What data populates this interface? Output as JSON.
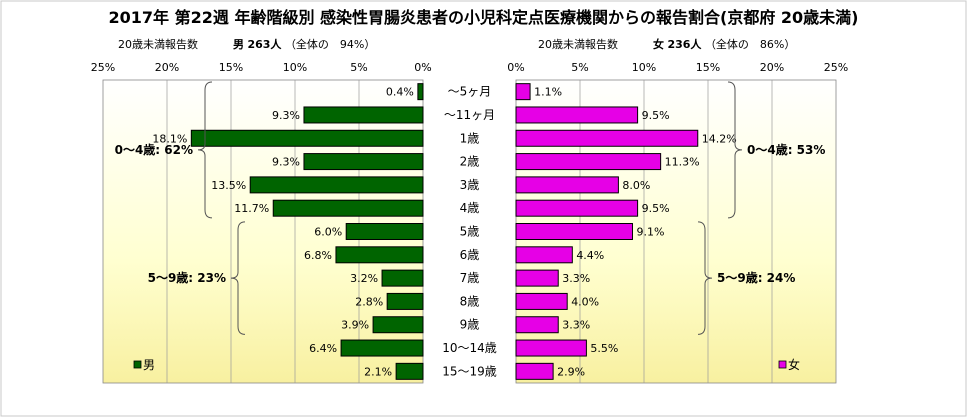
{
  "chart_data": {
    "type": "bar",
    "title": "2017年 第22週 年齢階級別 感染性胃腸炎患者の小児科定点医療機関からの報告割合(京都府 20歳未満)",
    "categories": [
      "～5ヶ月",
      "～11ヶ月",
      "1歳",
      "2歳",
      "3歳",
      "4歳",
      "5歳",
      "6歳",
      "7歳",
      "8歳",
      "9歳",
      "10～14歳",
      "15～19歳"
    ],
    "x_ticks": [
      "25%",
      "20%",
      "15%",
      "10%",
      "5%",
      "0%"
    ],
    "x_ticks_right": [
      "0%",
      "5%",
      "10%",
      "15%",
      "20%",
      "25%"
    ],
    "xlim": [
      0,
      25
    ],
    "series": [
      {
        "name": "男",
        "color": "#006400",
        "header_label": "20歳未満報告数",
        "header_name": "男",
        "header_count": "263人",
        "header_share": "（全体の　94%）",
        "values": [
          0.4,
          9.3,
          18.1,
          9.3,
          13.5,
          11.7,
          6.0,
          6.8,
          3.2,
          2.8,
          3.9,
          6.4,
          2.1
        ],
        "labels": [
          "0.4%",
          "9.3%",
          "18.1%",
          "9.3%",
          "13.5%",
          "11.7%",
          "6.0%",
          "6.8%",
          "3.2%",
          "2.8%",
          "3.9%",
          "6.4%",
          "2.1%"
        ],
        "groups": [
          {
            "label": "0～4歳: 62%",
            "from": 0,
            "to": 5
          },
          {
            "label": "5～9歳: 23%",
            "from": 6,
            "to": 10
          }
        ]
      },
      {
        "name": "女",
        "color": "#e600e6",
        "header_label": "20歳未満報告数",
        "header_name": "女",
        "header_count": "236人",
        "header_share": "（全体の　86%）",
        "values": [
          1.1,
          9.5,
          14.2,
          11.3,
          8.0,
          9.5,
          9.1,
          4.4,
          3.3,
          4.0,
          3.3,
          5.5,
          2.9
        ],
        "labels": [
          "1.1%",
          "9.5%",
          "14.2%",
          "11.3%",
          "8.0%",
          "9.5%",
          "9.1%",
          "4.4%",
          "3.3%",
          "4.0%",
          "3.3%",
          "5.5%",
          "2.9%"
        ],
        "groups": [
          {
            "label": "0～4歳: 53%",
            "from": 0,
            "to": 5
          },
          {
            "label": "5～9歳: 24%",
            "from": 6,
            "to": 10
          }
        ]
      }
    ],
    "grid": true
  }
}
